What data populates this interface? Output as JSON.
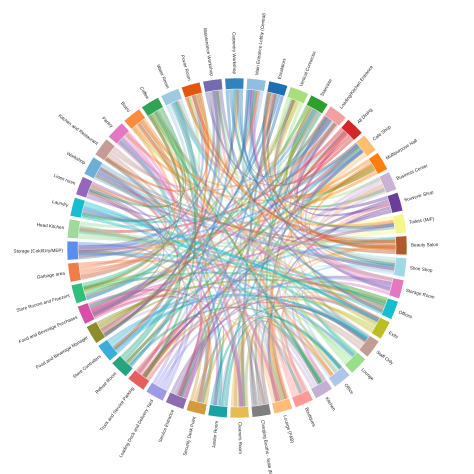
{
  "diagram": {
    "type": "chord",
    "nodes": [
      {
        "label": "Main Entrance Lobby (Central)",
        "color": "#8fbfe0"
      },
      {
        "label": "Escalators",
        "color": "#1f6fb4"
      },
      {
        "label": "Vertical Connector",
        "color": "#a8df7a"
      },
      {
        "label": "Staircase",
        "color": "#2ca02c"
      },
      {
        "label": "Loading/Kitchen Entrance",
        "color": "#f4a0a0"
      },
      {
        "label": "All Dining",
        "color": "#d62728"
      },
      {
        "label": "Cafe Shop",
        "color": "#fdbf6f"
      },
      {
        "label": "Multipurpose Hall",
        "color": "#ff7f0e"
      },
      {
        "label": "Business Center",
        "color": "#cab2d6"
      },
      {
        "label": "Souvenir Shop",
        "color": "#6a3d9a"
      },
      {
        "label": "Toilets (M/F)",
        "color": "#f5f58a"
      },
      {
        "label": "Beauty Salon",
        "color": "#b15928"
      },
      {
        "label": "Shoe Shop",
        "color": "#9edae5"
      },
      {
        "label": "Storage Room",
        "color": "#e377c2"
      },
      {
        "label": "Offices",
        "color": "#17becf"
      },
      {
        "label": "Exits",
        "color": "#bcbd22"
      },
      {
        "label": "Staff Only",
        "color": "#c49c94"
      },
      {
        "label": "Lounge",
        "color": "#98df8a"
      },
      {
        "label": "Office",
        "color": "#aec7e8"
      },
      {
        "label": "Kitchen",
        "color": "#c5b0d5"
      },
      {
        "label": "Boutiques",
        "color": "#ff9896"
      },
      {
        "label": "Lounge (F&B)",
        "color": "#ffbb78"
      },
      {
        "label": "Charging Booths - Suite (MEP)",
        "color": "#7f7f7f"
      },
      {
        "label": "Cleaners Room",
        "color": "#e7ba52"
      },
      {
        "label": "Janitor Room",
        "color": "#1aa3a3"
      },
      {
        "label": "Security Desk Point",
        "color": "#d59a3b"
      },
      {
        "label": "Service Entrance",
        "color": "#8c6bb1"
      },
      {
        "label": "Loading Dock and Delivery Yard",
        "color": "#9e9ae6"
      },
      {
        "label": "Truck and Service Parking",
        "color": "#e85d5d"
      },
      {
        "label": "Refuse Room",
        "color": "#27a380"
      },
      {
        "label": "Store Controllers",
        "color": "#3aaed8"
      },
      {
        "label": "Food and Beverage Manager",
        "color": "#8c8c2a"
      },
      {
        "label": "Food and Beverage Purchases",
        "color": "#d94fa8"
      },
      {
        "label": "Store Rooms and Freezers",
        "color": "#2fbf7a"
      },
      {
        "label": "Garbage area",
        "color": "#f07c4a"
      },
      {
        "label": "Storage (Cold/Dry/MEP)",
        "color": "#5b8def"
      },
      {
        "label": "Head Kitchen",
        "color": "#a1d99b"
      },
      {
        "label": "Laundry",
        "color": "#17becf"
      },
      {
        "label": "Linen room",
        "color": "#9467bd"
      },
      {
        "label": "Workshop",
        "color": "#6baed6"
      },
      {
        "label": "Kitchen and Restaurant",
        "color": "#c49c94"
      },
      {
        "label": "Pantry",
        "color": "#e377c2"
      },
      {
        "label": "Bistro",
        "color": "#fd8d3c"
      },
      {
        "label": "Coffee",
        "color": "#31a354"
      },
      {
        "label": "Water Room",
        "color": "#9ecae1"
      },
      {
        "label": "Power Room",
        "color": "#e6550d"
      },
      {
        "label": "Maintenance Workshop",
        "color": "#756bb1"
      },
      {
        "label": "Carpentry Workshop",
        "color": "#3182bd"
      }
    ]
  }
}
